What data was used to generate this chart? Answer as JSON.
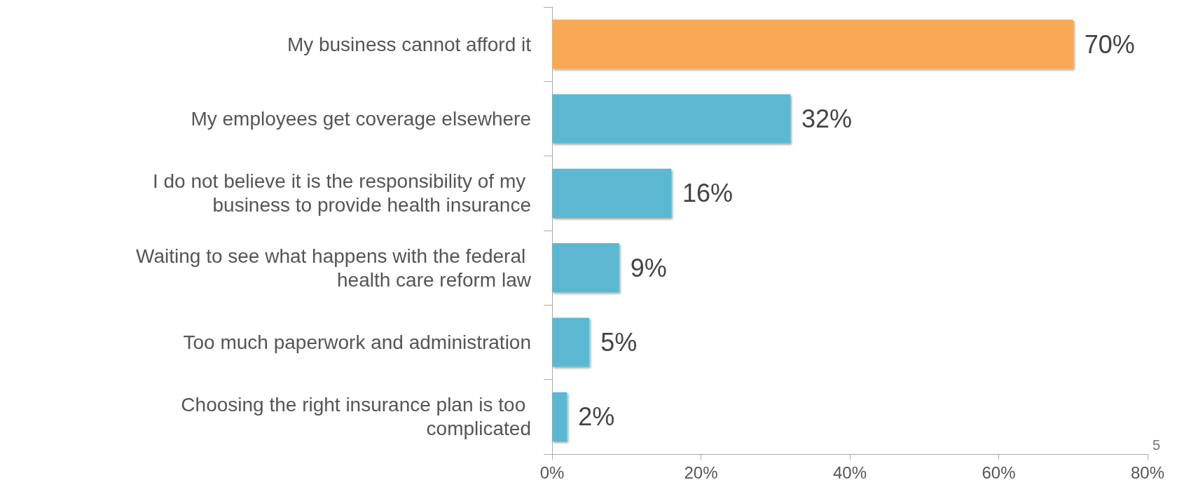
{
  "chart_data": {
    "type": "bar",
    "orientation": "horizontal",
    "categories": [
      "My business cannot afford it",
      "My employees get coverage elsewhere",
      "I do not believe it is the responsibility of my business to provide health insurance",
      "Waiting to see what happens with the federal health care reform law",
      "Too much paperwork and administration",
      "Choosing the right insurance plan is too complicated"
    ],
    "values": [
      70,
      32,
      16,
      9,
      5,
      2
    ],
    "colors": [
      "#f9a856",
      "#5bb8d0",
      "#5bb8d0",
      "#5bb8d0",
      "#5bb8d0",
      "#5bb8d0"
    ],
    "value_labels": [
      "70%",
      "32%",
      "16%",
      "9%",
      "5%",
      "2%"
    ],
    "xlim": [
      0,
      80
    ],
    "xticks": [
      {
        "value": 0,
        "label": "0%"
      },
      {
        "value": 20,
        "label": "20%"
      },
      {
        "value": 40,
        "label": "40%"
      },
      {
        "value": 60,
        "label": "60%"
      },
      {
        "value": 80,
        "label": "80%"
      }
    ],
    "grid": false,
    "annotations": [
      "5"
    ]
  }
}
